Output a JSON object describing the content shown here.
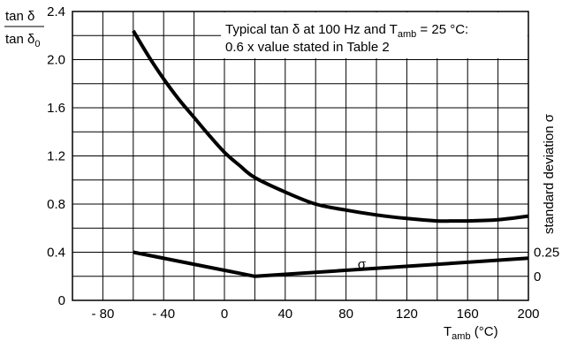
{
  "chart_data": {
    "type": "line",
    "ylabel": {
      "numerator": "tan δ",
      "denominator_main": "tan δ",
      "denominator_sub": "0"
    },
    "xlabel": {
      "main": "T",
      "sub": "amb",
      "unit": " (°C)"
    },
    "ylabel_right": "standard deviation σ",
    "xlim": [
      -100,
      200
    ],
    "ylim": [
      0,
      2.4
    ],
    "x_ticks": [
      "- 80",
      "- 40",
      "0",
      "40",
      "80",
      "120",
      "160",
      "200"
    ],
    "x_tick_values": [
      -80,
      -40,
      0,
      40,
      80,
      120,
      160,
      200
    ],
    "y_ticks": [
      "0",
      "0.4",
      "0.8",
      "1.2",
      "1.6",
      "2.0",
      "2.4"
    ],
    "y_tick_values": [
      0,
      0.4,
      0.8,
      1.2,
      1.6,
      2.0,
      2.4
    ],
    "y2_ticks": [
      "0",
      "0.25"
    ],
    "y2_tick_positions": [
      0.2,
      0.4
    ],
    "annotation": {
      "line1_pre": "Typical tan δ at 100 Hz and T",
      "line1_sub": "amb",
      "line1_post": " = 25 °C:",
      "line2": "0.6 x value stated in Table 2"
    },
    "series": [
      {
        "x": [
          -60,
          -50,
          -40,
          -30,
          -20,
          -10,
          0,
          10,
          20,
          40,
          60,
          80,
          100,
          120,
          140,
          150,
          160,
          180,
          200
        ],
        "y": [
          2.24,
          2.03,
          1.84,
          1.67,
          1.52,
          1.37,
          1.23,
          1.12,
          1.02,
          0.9,
          0.8,
          0.75,
          0.71,
          0.68,
          0.66,
          0.66,
          0.66,
          0.67,
          0.7
        ]
      },
      {
        "name": "σ",
        "x": [
          -60,
          20,
          200
        ],
        "y": [
          0.4,
          0.2,
          0.35
        ]
      }
    ],
    "sigma_label": "σ",
    "sigma_label_at": [
      90,
      0.3
    ],
    "grid": true,
    "grid_minor_y": 0.2,
    "grid_minor_x": 20
  }
}
